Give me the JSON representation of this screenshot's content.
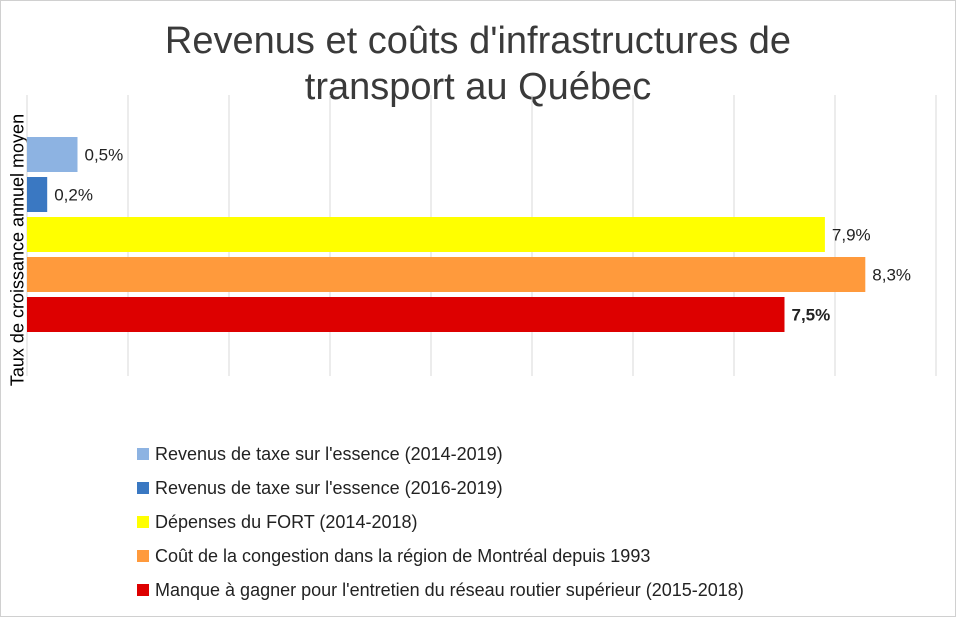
{
  "chart_data": {
    "type": "bar",
    "orientation": "horizontal",
    "title": "Revenus et coûts d'infrastructures de transport au Québec",
    "title_lines": [
      "Revenus et coûts d'infrastructures de",
      "transport au Québec"
    ],
    "ylabel": "Taux de croissance annuel moyen",
    "xlabel": "",
    "xlim": [
      0,
      9
    ],
    "grid": true,
    "legend_position": "bottom",
    "series": [
      {
        "name": "Revenus de taxe sur l'essence (2014-2019)",
        "value": 0.5,
        "label": "0,5%",
        "color": "#8db3e2"
      },
      {
        "name": "Revenus de taxe sur l'essence (2016-2019)",
        "value": 0.2,
        "label": "0,2%",
        "color": "#3a78c2"
      },
      {
        "name": "Dépenses du FORT (2014-2018)",
        "value": 7.9,
        "label": "7,9%",
        "color": "#ffff00"
      },
      {
        "name": "Coût de la congestion dans la région de Montréal depuis 1993",
        "value": 8.3,
        "label": "8,3%",
        "color": "#ff9a3c"
      },
      {
        "name": "Manque à gagner pour l'entretien du réseau routier supérieur (2015-2018)",
        "value": 7.5,
        "label": "7,5%",
        "color": "#dd0000"
      }
    ]
  }
}
